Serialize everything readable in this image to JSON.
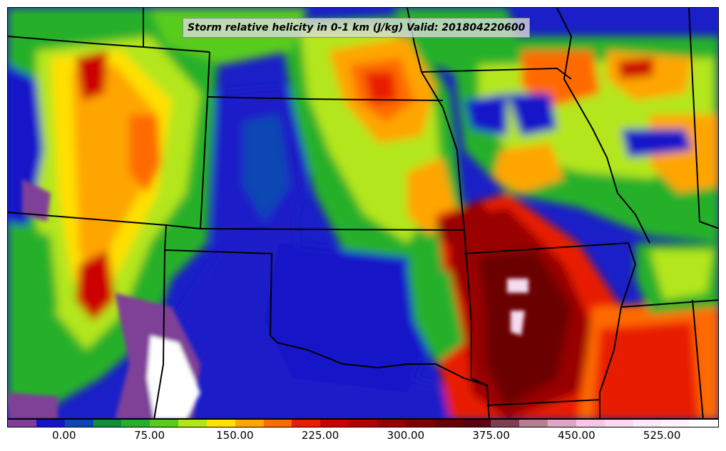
{
  "title": "Storm relative helicity in 0-1 km (J/kg) Valid: 201804220600",
  "colorbar": {
    "min": -50,
    "max": 575,
    "step": 25,
    "colors": [
      "#7f3f98",
      "#1515c8",
      "#0c46b4",
      "#0f8f3a",
      "#25b02a",
      "#59cc1a",
      "#b3e61a",
      "#ffe000",
      "#ffa500",
      "#ff6a00",
      "#e81e00",
      "#cc0000",
      "#b20000",
      "#990000",
      "#800000",
      "#6a0000",
      "#5a0010",
      "#7a4050",
      "#b28090",
      "#dba7c7",
      "#f2c8e6",
      "#f7dbf0",
      "#fbeaf7",
      "#fff4fc",
      "#ffffff"
    ],
    "ticks": [
      {
        "value": 0,
        "label": "0.00"
      },
      {
        "value": 75,
        "label": "75.00"
      },
      {
        "value": 150,
        "label": "150.00"
      },
      {
        "value": 225,
        "label": "225.00"
      },
      {
        "value": 300,
        "label": "300.00"
      },
      {
        "value": 375,
        "label": "375.00"
      },
      {
        "value": 450,
        "label": "450.00"
      },
      {
        "value": 525,
        "label": "525.00"
      }
    ]
  }
}
